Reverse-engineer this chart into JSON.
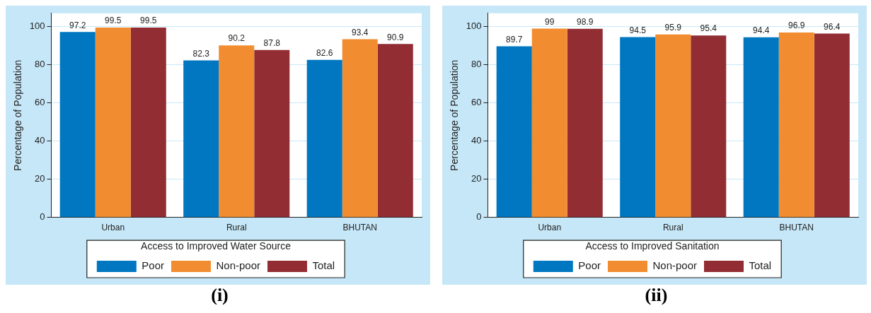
{
  "chart_data": [
    {
      "type": "bar",
      "categories": [
        "Urban",
        "Rural",
        "BHUTAN"
      ],
      "ylabel": "Percentage of Population",
      "legend_title": "Access to Improved Water Source",
      "legend": "bottom",
      "grid": "y",
      "data_labels": true,
      "ylim": [
        0,
        107
      ],
      "yticks": [
        0,
        20,
        40,
        60,
        80,
        100
      ],
      "annotations": [
        "(i)"
      ],
      "series": [
        {
          "name": "Poor",
          "color": "#0077c0",
          "values": [
            97.2,
            82.3,
            82.6
          ]
        },
        {
          "name": "Non-poor",
          "color": "#f28c30",
          "values": [
            99.5,
            90.2,
            93.4
          ]
        },
        {
          "name": "Total",
          "color": "#922d34",
          "values": [
            99.5,
            87.8,
            90.9
          ]
        }
      ]
    },
    {
      "type": "bar",
      "categories": [
        "Urban",
        "Rural",
        "BHUTAN"
      ],
      "ylabel": "Percentage of Population",
      "legend_title": "Access to Improved Sanitation",
      "legend": "bottom",
      "grid": "y",
      "data_labels": true,
      "ylim": [
        0,
        107
      ],
      "yticks": [
        0,
        20,
        40,
        60,
        80,
        100
      ],
      "annotations": [
        "(ii)"
      ],
      "series": [
        {
          "name": "Poor",
          "color": "#0077c0",
          "values": [
            89.7,
            94.5,
            94.4
          ]
        },
        {
          "name": "Non-poor",
          "color": "#f28c30",
          "values": [
            99,
            95.9,
            96.9
          ]
        },
        {
          "name": "Total",
          "color": "#922d34",
          "values": [
            98.9,
            95.4,
            96.4
          ]
        }
      ]
    }
  ]
}
